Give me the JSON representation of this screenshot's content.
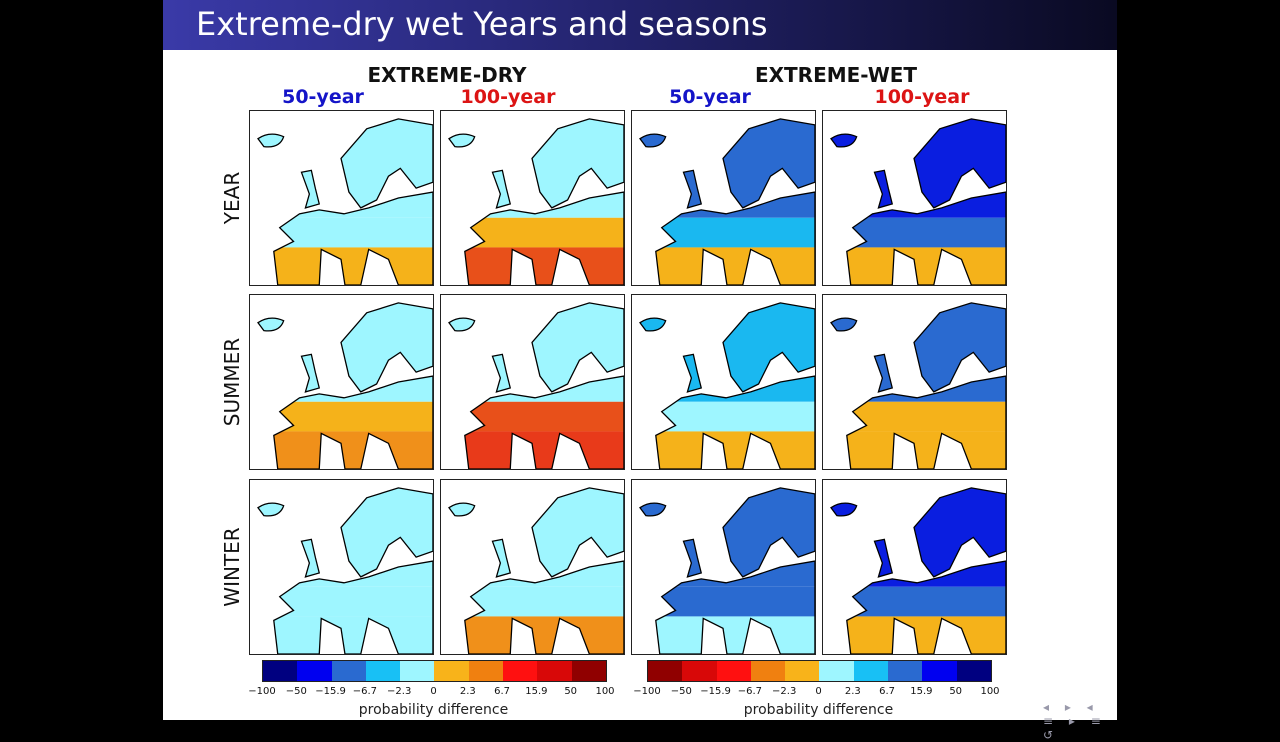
{
  "title": "Extreme-dry wet Years and seasons",
  "groups": [
    {
      "label": "EXTREME-DRY",
      "sub": [
        {
          "label": "50-year",
          "color": "#1414c8"
        },
        {
          "label": "100-year",
          "color": "#dc1414"
        }
      ]
    },
    {
      "label": "EXTREME-WET",
      "sub": [
        {
          "label": "50-year",
          "color": "#1414c8"
        },
        {
          "label": "100-year",
          "color": "#dc1414"
        }
      ]
    }
  ],
  "rows": [
    "YEAR",
    "SUMMER",
    "WINTER"
  ],
  "panels": [
    [
      {
        "n": "#9ef6ff",
        "m": "#9ef6ff",
        "s": "#f5b21a"
      },
      {
        "n": "#9ef6ff",
        "m": "#f5b21a",
        "s": "#e8501a"
      },
      {
        "n": "#2a6ad0",
        "m": "#1ab8f0",
        "s": "#f5b21a"
      },
      {
        "n": "#0a1ee0",
        "m": "#2a6ad0",
        "s": "#f5b21a"
      }
    ],
    [
      {
        "n": "#9ef6ff",
        "m": "#f5b21a",
        "s": "#f0901a"
      },
      {
        "n": "#9ef6ff",
        "m": "#e8501a",
        "s": "#e83a1a"
      },
      {
        "n": "#1ab8f0",
        "m": "#9ef6ff",
        "s": "#f5b21a"
      },
      {
        "n": "#2a6ad0",
        "m": "#f5b21a",
        "s": "#f5b21a"
      }
    ],
    [
      {
        "n": "#9ef6ff",
        "m": "#9ef6ff",
        "s": "#9ef6ff"
      },
      {
        "n": "#9ef6ff",
        "m": "#9ef6ff",
        "s": "#f0901a"
      },
      {
        "n": "#2a6ad0",
        "m": "#2a6ad0",
        "s": "#9ef6ff"
      },
      {
        "n": "#0a1ee0",
        "m": "#2a6ad0",
        "s": "#f5b21a"
      }
    ]
  ],
  "colorbars": [
    {
      "colors": [
        "#000080",
        "#0000f0",
        "#2a6ad0",
        "#18c0f5",
        "#9ef6ff",
        "#f8b31a",
        "#f08010",
        "#ff1010",
        "#d80808",
        "#900000"
      ],
      "ticks": [
        "−100",
        "−50",
        "−15.9",
        "−6.7",
        "−2.3",
        "0",
        "2.3",
        "6.7",
        "15.9",
        "50",
        "100"
      ],
      "label": "probability difference"
    },
    {
      "colors": [
        "#900000",
        "#d80808",
        "#ff1010",
        "#f08010",
        "#f8b31a",
        "#9ef6ff",
        "#18c0f5",
        "#2a6ad0",
        "#0000f0",
        "#000080"
      ],
      "ticks": [
        "−100",
        "−50",
        "−15.9",
        "−6.7",
        "−2.3",
        "0",
        "2.3",
        "6.7",
        "15.9",
        "50",
        "100"
      ],
      "label": "probability difference"
    }
  ]
}
